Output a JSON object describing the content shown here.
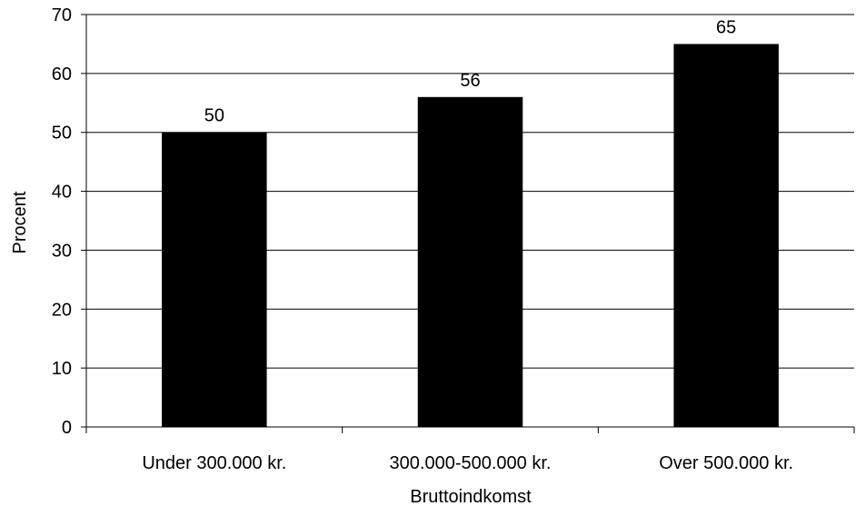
{
  "chart_data": {
    "type": "bar",
    "categories": [
      "Under 300.000 kr.",
      "300.000-500.000 kr.",
      "Over 500.000 kr."
    ],
    "values": [
      50,
      56,
      65
    ],
    "data_labels": [
      "50",
      "56",
      "65"
    ],
    "xlabel": "Bruttoindkomst",
    "ylabel": "Procent",
    "ylim": [
      0,
      70
    ],
    "yticks": [
      0,
      10,
      20,
      30,
      40,
      50,
      60,
      70
    ],
    "grid": true,
    "bar_color": "#000000",
    "legend": false
  }
}
